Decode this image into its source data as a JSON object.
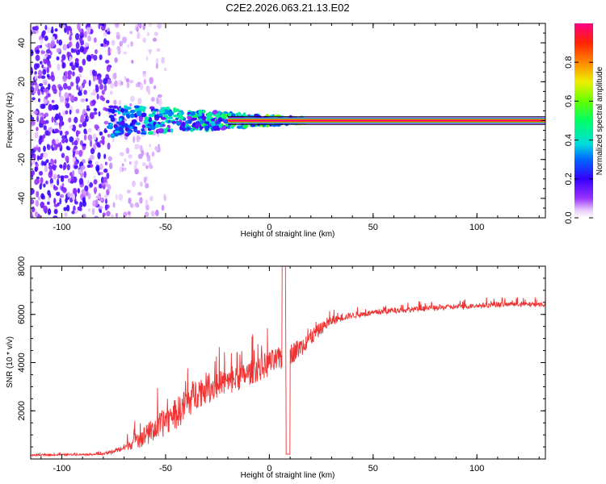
{
  "title": "C2E2.2026.063.21.13.E02",
  "chart_data": [
    {
      "type": "heatmap",
      "name": "spectrogram",
      "xlabel": "Height of straight line (km)",
      "ylabel": "Frequency (Hz)",
      "xlim": [
        -115,
        133
      ],
      "ylim": [
        -50,
        50
      ],
      "x_ticks": [
        -100,
        -50,
        0,
        50,
        100
      ],
      "y_ticks": [
        -40,
        -20,
        0,
        20,
        40
      ],
      "colorbar": {
        "label": "Normalized spectral amplitude",
        "range": [
          0,
          1
        ],
        "ticks": [
          "0.0",
          "0.2",
          "0.4",
          "0.6",
          "0.8"
        ],
        "tick_values": [
          0.0,
          0.2,
          0.4,
          0.6,
          0.8
        ]
      },
      "ridge": {
        "frequency_hz": 0,
        "x_start": -20,
        "x_end": 133,
        "amplitude": 1.0
      },
      "noise_region": {
        "x_start": -115,
        "x_end": -58,
        "amplitude_range": [
          0.0,
          0.15
        ]
      },
      "transition_region": {
        "x_start": -77,
        "x_end": 17,
        "amplitude_range": [
          0.1,
          0.6
        ]
      }
    },
    {
      "type": "line",
      "name": "snr",
      "xlabel": "Height of straight line (km)",
      "ylabel": "SNR (10 * v/v)",
      "xlim": [
        -115,
        133
      ],
      "ylim": [
        0,
        8000
      ],
      "x_ticks": [
        -100,
        -50,
        0,
        50,
        100
      ],
      "y_ticks": [
        2000,
        4000,
        6000,
        8000
      ],
      "color": "#ee3333",
      "trend": {
        "x": [
          -115,
          -80,
          -75,
          -70,
          -65,
          -60,
          -55,
          -50,
          -45,
          -40,
          -35,
          -30,
          -25,
          -20,
          -15,
          -10,
          -5,
          0,
          5,
          10,
          15,
          20,
          25,
          30,
          35,
          40,
          50,
          60,
          70,
          80,
          90,
          100,
          110,
          120,
          133
        ],
        "y": [
          150,
          200,
          300,
          450,
          700,
          900,
          1200,
          1500,
          1800,
          2200,
          2700,
          2900,
          3000,
          3100,
          3300,
          3500,
          3700,
          3900,
          4100,
          4300,
          4600,
          5000,
          5400,
          5700,
          5850,
          5950,
          6050,
          6150,
          6200,
          6250,
          6300,
          6350,
          6400,
          6400,
          6400
        ]
      },
      "noise_amplitude": {
        "x": [
          -115,
          -80,
          -70,
          -60,
          -50,
          -40,
          -30,
          -20,
          -10,
          0,
          10,
          20,
          30,
          40,
          60,
          133
        ],
        "y": [
          60,
          80,
          300,
          900,
          1200,
          1400,
          1300,
          1100,
          1000,
          1100,
          900,
          700,
          350,
          250,
          220,
          200
        ]
      },
      "features": [
        {
          "x": 7,
          "y": 8000,
          "kind": "spike"
        },
        {
          "x": 9,
          "y": 200,
          "kind": "dip"
        }
      ]
    }
  ]
}
